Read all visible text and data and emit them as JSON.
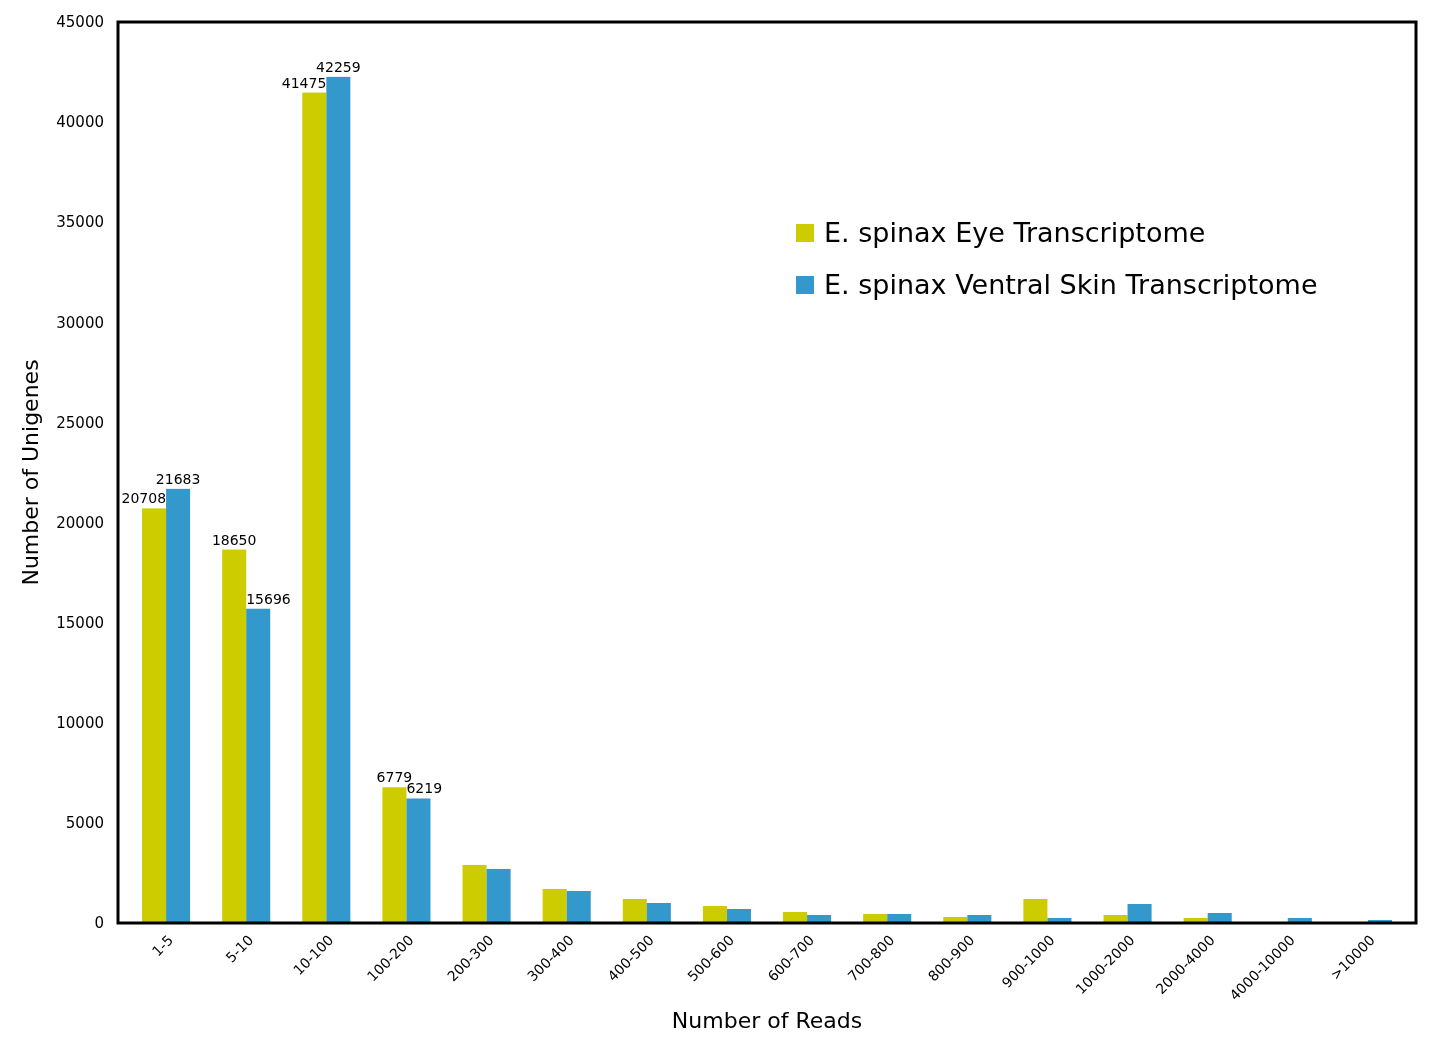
{
  "chart_data": {
    "type": "bar",
    "xlabel": "Number of Reads",
    "ylabel": "Number of Unigenes",
    "categories": [
      "1-5",
      "5-10",
      "10-100",
      "100-200",
      "200-300",
      "300-400",
      "400-500",
      "500-600",
      "600-700",
      "700-800",
      "800-900",
      "900-1000",
      "1000-2000",
      "2000-4000",
      "4000-10000",
      ">10000"
    ],
    "series": [
      {
        "name": "E. spinax Eye Transcriptome",
        "color": "#cccc00",
        "values": [
          20708,
          18650,
          41475,
          6779,
          2900,
          1700,
          1200,
          850,
          550,
          450,
          300,
          1200,
          400,
          250,
          0,
          0
        ],
        "value_labels": [
          "20708",
          "18650",
          "41475",
          "6779",
          null,
          null,
          null,
          null,
          null,
          null,
          null,
          null,
          null,
          null,
          null,
          null
        ]
      },
      {
        "name": "E. spinax Ventral Skin Transcriptome",
        "color": "#3399cc",
        "values": [
          21683,
          15696,
          42259,
          6219,
          2700,
          1600,
          1000,
          700,
          400,
          450,
          400,
          250,
          950,
          500,
          250,
          150
        ],
        "value_labels": [
          "21683",
          "15696",
          "42259",
          "6219",
          null,
          null,
          null,
          null,
          null,
          null,
          null,
          null,
          null,
          null,
          null,
          null
        ]
      }
    ],
    "ylim": [
      0,
      45000
    ],
    "yticks": [
      0,
      5000,
      10000,
      15000,
      20000,
      25000,
      30000,
      35000,
      40000,
      45000
    ],
    "grid": false,
    "legend": "top right"
  }
}
